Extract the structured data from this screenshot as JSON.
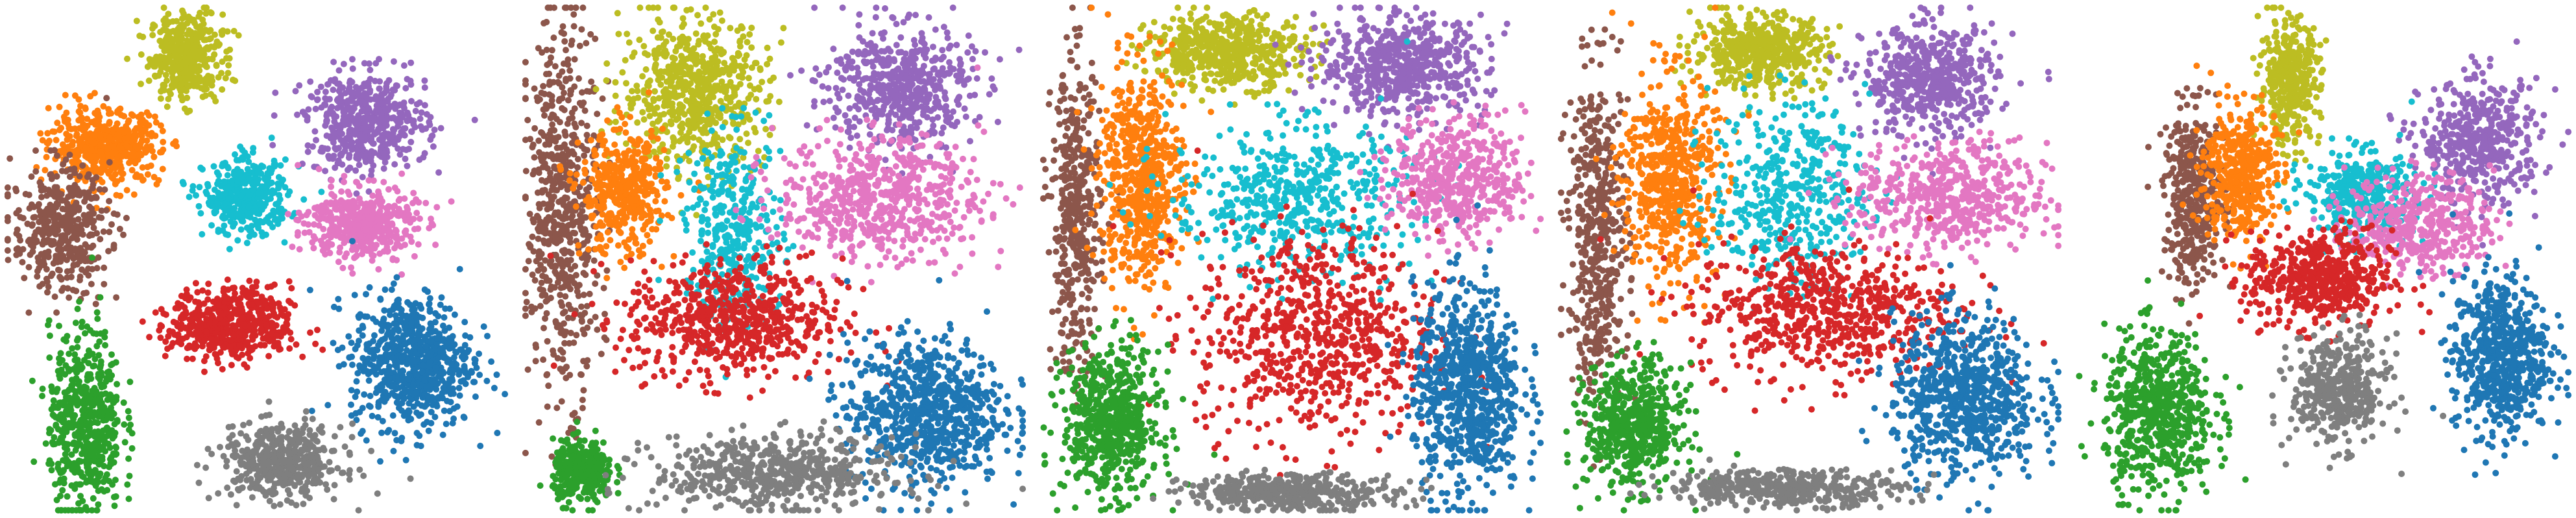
{
  "palette": {
    "blue": "#1f77b4",
    "orange": "#ff7f0e",
    "green": "#2ca02c",
    "red": "#d62728",
    "purple": "#9467bd",
    "brown": "#8c564b",
    "pink": "#e377c2",
    "gray": "#7f7f7f",
    "olive": "#bcbd22",
    "cyan": "#17becf"
  },
  "chart_data": [
    {
      "type": "scatter",
      "title": "",
      "axes_visible": false,
      "grid": false,
      "legend": "none",
      "xlim": [
        0,
        1
      ],
      "ylim": [
        0,
        1
      ],
      "clusters": [
        {
          "color": "olive",
          "center": [
            0.36,
            0.9
          ],
          "spread": [
            0.06,
            0.07
          ],
          "points": 420
        },
        {
          "color": "orange",
          "center": [
            0.2,
            0.72
          ],
          "spread": [
            0.09,
            0.06
          ],
          "points": 520
        },
        {
          "color": "cyan",
          "center": [
            0.48,
            0.62
          ],
          "spread": [
            0.07,
            0.06
          ],
          "points": 400
        },
        {
          "color": "purple",
          "center": [
            0.72,
            0.77
          ],
          "spread": [
            0.1,
            0.08
          ],
          "points": 520
        },
        {
          "color": "pink",
          "center": [
            0.71,
            0.57
          ],
          "spread": [
            0.09,
            0.06
          ],
          "points": 450
        },
        {
          "color": "brown",
          "center": [
            0.11,
            0.56
          ],
          "spread": [
            0.08,
            0.1
          ],
          "points": 430
        },
        {
          "color": "red",
          "center": [
            0.45,
            0.37
          ],
          "spread": [
            0.1,
            0.06
          ],
          "points": 560
        },
        {
          "color": "blue",
          "center": [
            0.81,
            0.3
          ],
          "spread": [
            0.1,
            0.11
          ],
          "points": 700
        },
        {
          "color": "green",
          "center": [
            0.16,
            0.18
          ],
          "spread": [
            0.06,
            0.15
          ],
          "points": 560
        },
        {
          "color": "gray",
          "center": [
            0.55,
            0.1
          ],
          "spread": [
            0.1,
            0.06
          ],
          "points": 470
        }
      ]
    },
    {
      "type": "scatter",
      "title": "",
      "axes_visible": false,
      "grid": false,
      "legend": "none",
      "xlim": [
        0,
        1
      ],
      "ylim": [
        0,
        1
      ],
      "clusters": [
        {
          "color": "brown",
          "center": [
            0.08,
            0.6
          ],
          "spread": [
            0.06,
            0.3
          ],
          "points": 620
        },
        {
          "color": "olive",
          "center": [
            0.34,
            0.83
          ],
          "spread": [
            0.12,
            0.12
          ],
          "points": 620
        },
        {
          "color": "orange",
          "center": [
            0.2,
            0.63
          ],
          "spread": [
            0.07,
            0.1
          ],
          "points": 420
        },
        {
          "color": "cyan",
          "center": [
            0.42,
            0.55
          ],
          "spread": [
            0.08,
            0.16
          ],
          "points": 380
        },
        {
          "color": "purple",
          "center": [
            0.75,
            0.84
          ],
          "spread": [
            0.12,
            0.1
          ],
          "points": 540
        },
        {
          "color": "pink",
          "center": [
            0.71,
            0.62
          ],
          "spread": [
            0.17,
            0.1
          ],
          "points": 600
        },
        {
          "color": "red",
          "center": [
            0.42,
            0.38
          ],
          "spread": [
            0.18,
            0.1
          ],
          "points": 640
        },
        {
          "color": "blue",
          "center": [
            0.8,
            0.2
          ],
          "spread": [
            0.13,
            0.12
          ],
          "points": 760
        },
        {
          "color": "green",
          "center": [
            0.12,
            0.08
          ],
          "spread": [
            0.05,
            0.05
          ],
          "points": 330
        },
        {
          "color": "gray",
          "center": [
            0.5,
            0.08
          ],
          "spread": [
            0.2,
            0.06
          ],
          "points": 560
        }
      ]
    },
    {
      "type": "scatter",
      "title": "",
      "axes_visible": false,
      "grid": false,
      "legend": "none",
      "xlim": [
        0,
        1
      ],
      "ylim": [
        0,
        1
      ],
      "clusters": [
        {
          "color": "olive",
          "center": [
            0.37,
            0.91
          ],
          "spread": [
            0.13,
            0.06
          ],
          "points": 520
        },
        {
          "color": "purple",
          "center": [
            0.72,
            0.88
          ],
          "spread": [
            0.14,
            0.08
          ],
          "points": 580
        },
        {
          "color": "brown",
          "center": [
            0.07,
            0.58
          ],
          "spread": [
            0.04,
            0.25
          ],
          "points": 440
        },
        {
          "color": "orange",
          "center": [
            0.2,
            0.66
          ],
          "spread": [
            0.07,
            0.18
          ],
          "points": 600
        },
        {
          "color": "cyan",
          "center": [
            0.5,
            0.62
          ],
          "spread": [
            0.2,
            0.12
          ],
          "points": 520
        },
        {
          "color": "pink",
          "center": [
            0.83,
            0.66
          ],
          "spread": [
            0.11,
            0.1
          ],
          "points": 480
        },
        {
          "color": "red",
          "center": [
            0.55,
            0.35
          ],
          "spread": [
            0.2,
            0.17
          ],
          "points": 700
        },
        {
          "color": "blue",
          "center": [
            0.85,
            0.24
          ],
          "spread": [
            0.09,
            0.17
          ],
          "points": 760
        },
        {
          "color": "green",
          "center": [
            0.14,
            0.18
          ],
          "spread": [
            0.08,
            0.12
          ],
          "points": 620
        },
        {
          "color": "gray",
          "center": [
            0.5,
            0.04
          ],
          "spread": [
            0.18,
            0.03
          ],
          "points": 400
        }
      ]
    },
    {
      "type": "scatter",
      "title": "",
      "axes_visible": false,
      "grid": false,
      "legend": "none",
      "xlim": [
        0,
        1
      ],
      "ylim": [
        0,
        1
      ],
      "clusters": [
        {
          "color": "olive",
          "center": [
            0.4,
            0.91
          ],
          "spread": [
            0.11,
            0.06
          ],
          "points": 500
        },
        {
          "color": "purple",
          "center": [
            0.74,
            0.85
          ],
          "spread": [
            0.11,
            0.09
          ],
          "points": 520
        },
        {
          "color": "brown",
          "center": [
            0.08,
            0.55
          ],
          "spread": [
            0.05,
            0.26
          ],
          "points": 480
        },
        {
          "color": "orange",
          "center": [
            0.22,
            0.66
          ],
          "spread": [
            0.08,
            0.17
          ],
          "points": 560
        },
        {
          "color": "cyan",
          "center": [
            0.46,
            0.63
          ],
          "spread": [
            0.13,
            0.15
          ],
          "points": 420
        },
        {
          "color": "pink",
          "center": [
            0.78,
            0.62
          ],
          "spread": [
            0.16,
            0.09
          ],
          "points": 520
        },
        {
          "color": "red",
          "center": [
            0.53,
            0.4
          ],
          "spread": [
            0.22,
            0.11
          ],
          "points": 640
        },
        {
          "color": "blue",
          "center": [
            0.81,
            0.23
          ],
          "spread": [
            0.12,
            0.13
          ],
          "points": 720
        },
        {
          "color": "green",
          "center": [
            0.15,
            0.17
          ],
          "spread": [
            0.08,
            0.1
          ],
          "points": 560
        },
        {
          "color": "gray",
          "center": [
            0.45,
            0.05
          ],
          "spread": [
            0.2,
            0.03
          ],
          "points": 420
        }
      ]
    },
    {
      "type": "scatter",
      "title": "",
      "axes_visible": false,
      "grid": false,
      "legend": "none",
      "xlim": [
        0,
        1
      ],
      "ylim": [
        0,
        1
      ],
      "clusters": [
        {
          "color": "olive",
          "center": [
            0.44,
            0.85
          ],
          "spread": [
            0.05,
            0.1
          ],
          "points": 380
        },
        {
          "color": "purple",
          "center": [
            0.82,
            0.73
          ],
          "spread": [
            0.1,
            0.1
          ],
          "points": 460
        },
        {
          "color": "brown",
          "center": [
            0.25,
            0.62
          ],
          "spread": [
            0.05,
            0.14
          ],
          "points": 400
        },
        {
          "color": "orange",
          "center": [
            0.34,
            0.67
          ],
          "spread": [
            0.06,
            0.11
          ],
          "points": 440
        },
        {
          "color": "cyan",
          "center": [
            0.58,
            0.63
          ],
          "spread": [
            0.09,
            0.07
          ],
          "points": 380
        },
        {
          "color": "pink",
          "center": [
            0.7,
            0.57
          ],
          "spread": [
            0.12,
            0.08
          ],
          "points": 420
        },
        {
          "color": "red",
          "center": [
            0.5,
            0.46
          ],
          "spread": [
            0.12,
            0.08
          ],
          "points": 520
        },
        {
          "color": "blue",
          "center": [
            0.86,
            0.31
          ],
          "spread": [
            0.08,
            0.13
          ],
          "points": 640
        },
        {
          "color": "green",
          "center": [
            0.18,
            0.2
          ],
          "spread": [
            0.09,
            0.13
          ],
          "points": 620
        },
        {
          "color": "gray",
          "center": [
            0.54,
            0.24
          ],
          "spread": [
            0.08,
            0.09
          ],
          "points": 420
        }
      ]
    }
  ]
}
